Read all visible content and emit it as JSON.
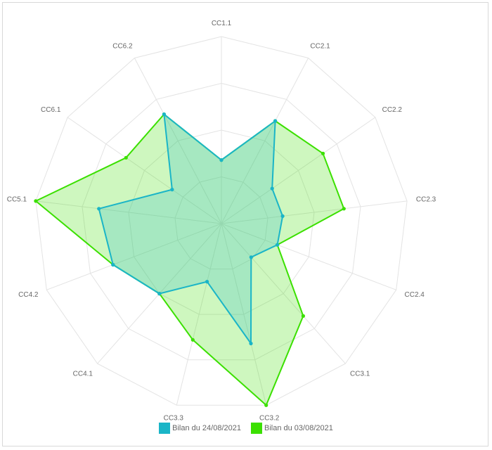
{
  "chart_data": {
    "type": "radar",
    "title": "",
    "axes": [
      "CC1.1",
      "CC2.1",
      "CC2.2",
      "CC2.3",
      "CC2.4",
      "CC3.1",
      "CC3.2",
      "CC3.3",
      "CC4.1",
      "CC4.2",
      "CC5.1",
      "CC6.1",
      "CC6.2"
    ],
    "rmax": 100,
    "grid_levels": 4,
    "series": [
      {
        "name": "Bilan du 03/08/2021",
        "color": "#3be000",
        "fill": "rgba(59, 224, 0, 0.25)",
        "values": [
          34,
          62,
          66,
          66,
          32,
          66,
          100,
          64,
          50,
          62,
          100,
          62,
          66
        ]
      },
      {
        "name": "Bilan du 24/08/2021",
        "color": "#1ab5c7",
        "fill": "rgba(26, 181, 199, 0.22)",
        "values": [
          34,
          62,
          33,
          33,
          32,
          24,
          66,
          32,
          50,
          62,
          66,
          32,
          66
        ]
      }
    ],
    "legend_position": "bottom",
    "grid": true
  }
}
